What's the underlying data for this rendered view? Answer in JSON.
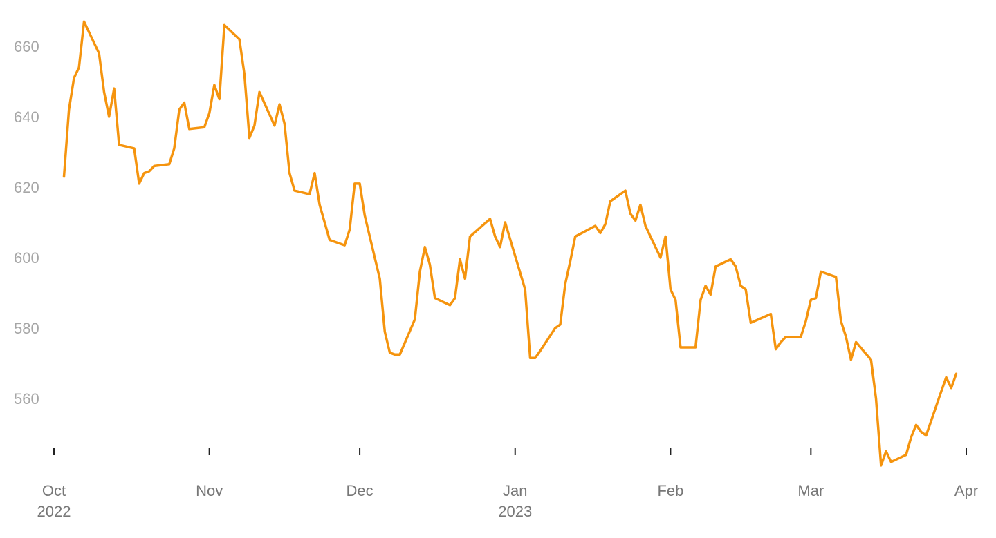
{
  "chart_data": {
    "type": "line",
    "title": "",
    "xlabel": "",
    "ylabel": "",
    "ylim": [
      540,
      668
    ],
    "grid": false,
    "colors": {
      "line": "#F5940E",
      "tick_label": "#a6a6a6",
      "date_label": "#777777",
      "tick_mark": "#222222"
    },
    "y_ticks": [
      "560",
      "580",
      "600",
      "620",
      "640",
      "660"
    ],
    "x_ticks": [
      {
        "date": "2022-10-01",
        "label": "Oct",
        "sublabel": "2022"
      },
      {
        "date": "2022-11-01",
        "label": "Nov",
        "sublabel": ""
      },
      {
        "date": "2022-12-01",
        "label": "Dec",
        "sublabel": ""
      },
      {
        "date": "2023-01-01",
        "label": "Jan",
        "sublabel": "2023"
      },
      {
        "date": "2023-02-01",
        "label": "Feb",
        "sublabel": ""
      },
      {
        "date": "2023-03-01",
        "label": "Mar",
        "sublabel": ""
      },
      {
        "date": "2023-04-01",
        "label": "Apr",
        "sublabel": ""
      }
    ],
    "series": [
      {
        "values": [
          [
            "2022-10-03",
            623
          ],
          [
            "2022-10-04",
            642
          ],
          [
            "2022-10-05",
            651
          ],
          [
            "2022-10-06",
            654
          ],
          [
            "2022-10-07",
            667
          ],
          [
            "2022-10-10",
            658
          ],
          [
            "2022-10-11",
            647
          ],
          [
            "2022-10-12",
            640
          ],
          [
            "2022-10-13",
            648
          ],
          [
            "2022-10-14",
            632
          ],
          [
            "2022-10-17",
            631
          ],
          [
            "2022-10-18",
            621
          ],
          [
            "2022-10-19",
            624
          ],
          [
            "2022-10-20",
            624.5
          ],
          [
            "2022-10-21",
            626
          ],
          [
            "2022-10-24",
            626.5
          ],
          [
            "2022-10-25",
            631
          ],
          [
            "2022-10-26",
            642
          ],
          [
            "2022-10-27",
            644
          ],
          [
            "2022-10-28",
            636.5
          ],
          [
            "2022-10-31",
            637
          ],
          [
            "2022-11-01",
            641
          ],
          [
            "2022-11-02",
            649
          ],
          [
            "2022-11-03",
            645
          ],
          [
            "2022-11-04",
            666
          ],
          [
            "2022-11-07",
            662
          ],
          [
            "2022-11-08",
            652
          ],
          [
            "2022-11-09",
            634
          ],
          [
            "2022-11-10",
            637.5
          ],
          [
            "2022-11-11",
            647
          ],
          [
            "2022-11-14",
            637.5
          ],
          [
            "2022-11-15",
            643.5
          ],
          [
            "2022-11-16",
            638
          ],
          [
            "2022-11-17",
            624
          ],
          [
            "2022-11-18",
            619
          ],
          [
            "2022-11-21",
            618
          ],
          [
            "2022-11-22",
            624
          ],
          [
            "2022-11-23",
            615
          ],
          [
            "2022-11-25",
            605
          ],
          [
            "2022-11-28",
            603.5
          ],
          [
            "2022-11-29",
            608
          ],
          [
            "2022-11-30",
            621
          ],
          [
            "2022-12-01",
            621
          ],
          [
            "2022-12-02",
            612
          ],
          [
            "2022-12-05",
            594
          ],
          [
            "2022-12-06",
            579
          ],
          [
            "2022-12-07",
            573
          ],
          [
            "2022-12-08",
            572.5
          ],
          [
            "2022-12-09",
            572.5
          ],
          [
            "2022-12-12",
            582.5
          ],
          [
            "2022-12-13",
            596
          ],
          [
            "2022-12-14",
            603
          ],
          [
            "2022-12-15",
            598
          ],
          [
            "2022-12-16",
            588.5
          ],
          [
            "2022-12-19",
            586.5
          ],
          [
            "2022-12-20",
            588.5
          ],
          [
            "2022-12-21",
            599.5
          ],
          [
            "2022-12-22",
            594
          ],
          [
            "2022-12-23",
            606
          ],
          [
            "2022-12-27",
            611
          ],
          [
            "2022-12-28",
            606
          ],
          [
            "2022-12-29",
            603
          ],
          [
            "2022-12-30",
            610
          ],
          [
            "2023-01-03",
            591
          ],
          [
            "2023-01-04",
            571.5
          ],
          [
            "2023-01-05",
            571.5
          ],
          [
            "2023-01-06",
            573.5
          ],
          [
            "2023-01-09",
            580
          ],
          [
            "2023-01-10",
            581
          ],
          [
            "2023-01-11",
            592.5
          ],
          [
            "2023-01-12",
            599
          ],
          [
            "2023-01-13",
            606
          ],
          [
            "2023-01-17",
            609
          ],
          [
            "2023-01-18",
            607
          ],
          [
            "2023-01-19",
            609.5
          ],
          [
            "2023-01-20",
            616
          ],
          [
            "2023-01-23",
            619
          ],
          [
            "2023-01-24",
            612.5
          ],
          [
            "2023-01-25",
            610.5
          ],
          [
            "2023-01-26",
            615
          ],
          [
            "2023-01-27",
            609
          ],
          [
            "2023-01-30",
            600
          ],
          [
            "2023-01-31",
            606
          ],
          [
            "2023-02-01",
            591
          ],
          [
            "2023-02-02",
            588
          ],
          [
            "2023-02-03",
            574.5
          ],
          [
            "2023-02-06",
            574.5
          ],
          [
            "2023-02-07",
            588
          ],
          [
            "2023-02-08",
            592
          ],
          [
            "2023-02-09",
            589.5
          ],
          [
            "2023-02-10",
            597.5
          ],
          [
            "2023-02-13",
            599.5
          ],
          [
            "2023-02-14",
            597.5
          ],
          [
            "2023-02-15",
            592
          ],
          [
            "2023-02-16",
            591
          ],
          [
            "2023-02-17",
            581.5
          ],
          [
            "2023-02-21",
            584
          ],
          [
            "2023-02-22",
            574
          ],
          [
            "2023-02-23",
            576
          ],
          [
            "2023-02-24",
            577.5
          ],
          [
            "2023-02-27",
            577.5
          ],
          [
            "2023-02-28",
            582
          ],
          [
            "2023-03-01",
            588
          ],
          [
            "2023-03-02",
            588.5
          ],
          [
            "2023-03-03",
            596
          ],
          [
            "2023-03-06",
            594.5
          ],
          [
            "2023-03-07",
            582
          ],
          [
            "2023-03-08",
            577.5
          ],
          [
            "2023-03-09",
            571
          ],
          [
            "2023-03-10",
            576
          ],
          [
            "2023-03-13",
            571
          ],
          [
            "2023-03-14",
            560
          ],
          [
            "2023-03-15",
            541
          ],
          [
            "2023-03-16",
            545
          ],
          [
            "2023-03-17",
            542
          ],
          [
            "2023-03-20",
            544
          ],
          [
            "2023-03-21",
            549
          ],
          [
            "2023-03-22",
            552.5
          ],
          [
            "2023-03-23",
            550.5
          ],
          [
            "2023-03-24",
            549.5
          ],
          [
            "2023-03-27",
            562
          ],
          [
            "2023-03-28",
            566
          ],
          [
            "2023-03-29",
            563
          ],
          [
            "2023-03-30",
            567
          ]
        ]
      }
    ]
  }
}
